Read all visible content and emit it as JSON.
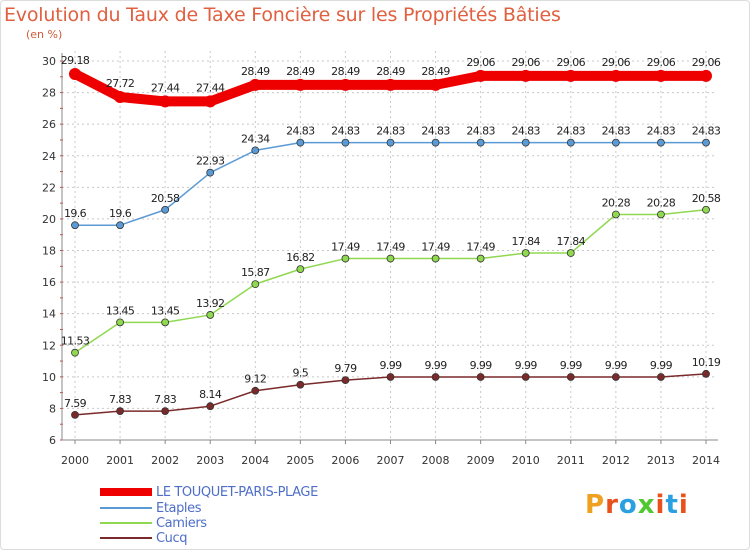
{
  "title": "Evolution du Taux de Taxe Foncière sur les Propriétés Bâties",
  "unit_label": "(en %)",
  "brand": "Proxiti",
  "brand_colors": [
    "#f0a020",
    "#e8501c",
    "#2aa0e0",
    "#50c830",
    "#e8501c",
    "#2aa0e0",
    "#e8501c"
  ],
  "chart_data": {
    "type": "line",
    "title": "Evolution du Taux de Taxe Foncière sur les Propriétés Bâties",
    "ylabel": "(en %)",
    "xlabel": "",
    "ylim": [
      6,
      30
    ],
    "yticks": [
      "6",
      "8",
      "10",
      "12",
      "14",
      "16",
      "18",
      "20",
      "22",
      "24",
      "26",
      "28",
      "30"
    ],
    "x": [
      "2000",
      "2001",
      "2002",
      "2003",
      "2004",
      "2005",
      "2006",
      "2007",
      "2008",
      "2009",
      "2010",
      "2011",
      "2012",
      "2013",
      "2014"
    ],
    "series": [
      {
        "name": "LE TOUQUET-PARIS-PLAGE",
        "color": "#ee0000",
        "values": [
          29.18,
          27.72,
          27.44,
          27.44,
          28.49,
          28.49,
          28.49,
          28.49,
          28.49,
          29.06,
          29.06,
          29.06,
          29.06,
          29.06,
          29.06
        ],
        "labels": [
          "29.18",
          "27.72",
          "27.44",
          "27.44",
          "28.49",
          "28.49",
          "28.49",
          "28.49",
          "28.49",
          "29.06",
          "29.06",
          "29.06",
          "29.06",
          "29.06",
          "29.06"
        ]
      },
      {
        "name": "Etaples",
        "color": "#5b9bd5",
        "values": [
          19.6,
          19.6,
          20.58,
          22.93,
          24.34,
          24.83,
          24.83,
          24.83,
          24.83,
          24.83,
          24.83,
          24.83,
          24.83,
          24.83,
          24.83
        ],
        "labels": [
          "19.6",
          "19.6",
          "20.58",
          "22.93",
          "24.34",
          "24.83",
          "24.83",
          "24.83",
          "24.83",
          "24.83",
          "24.83",
          "24.83",
          "24.83",
          "24.83",
          "24.83"
        ]
      },
      {
        "name": "Camiers",
        "color": "#8fd850",
        "values": [
          11.53,
          13.45,
          13.45,
          13.92,
          15.87,
          16.82,
          17.49,
          17.49,
          17.49,
          17.49,
          17.84,
          17.84,
          20.28,
          20.28,
          20.58
        ],
        "labels": [
          "11.53",
          "13.45",
          "13.45",
          "13.92",
          "15.87",
          "16.82",
          "17.49",
          "17.49",
          "17.49",
          "17.49",
          "17.84",
          "17.84",
          "20.28",
          "20.28",
          "20.58"
        ]
      },
      {
        "name": "Cucq",
        "color": "#7a2a2a",
        "values": [
          7.59,
          7.83,
          7.83,
          8.14,
          9.12,
          9.5,
          9.79,
          9.99,
          9.99,
          9.99,
          9.99,
          9.99,
          9.99,
          9.99,
          10.19
        ],
        "labels": [
          "7.59",
          "7.83",
          "7.83",
          "8.14",
          "9.12",
          "9.5",
          "9.79",
          "9.99",
          "9.99",
          "9.99",
          "9.99",
          "9.99",
          "9.99",
          "9.99",
          "10.19"
        ]
      }
    ]
  }
}
